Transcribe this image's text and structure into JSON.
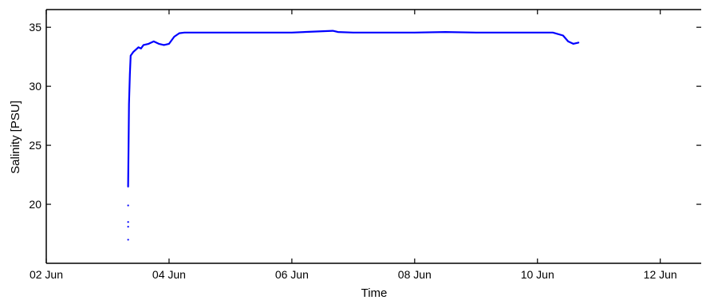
{
  "chart_data": {
    "type": "line",
    "title": "",
    "xlabel": "Time",
    "ylabel": "Salinity [PSU]",
    "x_unit": "date",
    "xlim": [
      "2014-06-02",
      "2014-06-12 16:00"
    ],
    "ylim": [
      15,
      36.5
    ],
    "x_ticks": [
      "02 Jun",
      "04 Jun",
      "06 Jun",
      "08 Jun",
      "10 Jun",
      "12 Jun"
    ],
    "y_ticks": [
      20,
      25,
      30,
      35
    ],
    "grid": false,
    "legend": "none",
    "series": [
      {
        "color": "#0000ff",
        "style": "line",
        "x": [
          "2014-06-03 08:00",
          "2014-06-03 08:10",
          "2014-06-03 08:20",
          "2014-06-03 08:40",
          "2014-06-03 09:00",
          "2014-06-03 10:00",
          "2014-06-03 11:00",
          "2014-06-03 12:00",
          "2014-06-03 13:00",
          "2014-06-03 14:00",
          "2014-06-03 16:00",
          "2014-06-03 18:00",
          "2014-06-03 20:00",
          "2014-06-03 22:00",
          "2014-06-04 00:00",
          "2014-06-04 02:00",
          "2014-06-04 04:00",
          "2014-06-04 06:00",
          "2014-06-05 00:00",
          "2014-06-06 00:00",
          "2014-06-06 16:00",
          "2014-06-06 18:00",
          "2014-06-07 00:00",
          "2014-06-08 00:00",
          "2014-06-08 12:00",
          "2014-06-09 00:00",
          "2014-06-10 00:00",
          "2014-06-10 06:00",
          "2014-06-10 10:00",
          "2014-06-10 12:00",
          "2014-06-10 14:00",
          "2014-06-10 16:00"
        ],
        "y": [
          21.5,
          25.2,
          28.5,
          31.0,
          32.6,
          32.9,
          33.1,
          33.3,
          33.2,
          33.5,
          33.6,
          33.8,
          33.6,
          33.5,
          33.6,
          34.2,
          34.5,
          34.55,
          34.55,
          34.55,
          34.7,
          34.6,
          34.55,
          34.55,
          34.6,
          34.55,
          34.55,
          34.55,
          34.3,
          33.8,
          33.6,
          33.7
        ]
      },
      {
        "color": "#0000ff",
        "style": "points",
        "x": [
          "2014-06-03 08:00",
          "2014-06-03 08:00",
          "2014-06-03 08:00",
          "2014-06-03 08:00"
        ],
        "y": [
          19.9,
          18.5,
          18.1,
          17.0
        ]
      }
    ]
  }
}
